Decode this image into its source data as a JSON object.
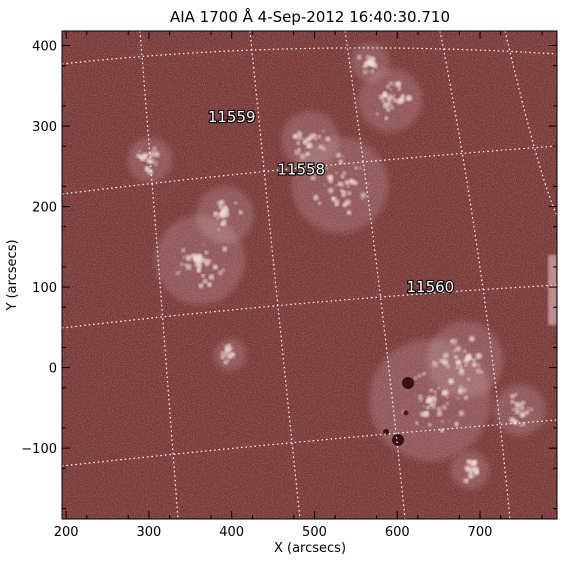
{
  "title": "AIA 1700 Å   4-Sep-2012 16:40:30.710",
  "axes": {
    "xlabel": "X (arcsecs)",
    "ylabel": "Y (arcsecs)",
    "xlim": [
      195,
      793
    ],
    "ylim": [
      -188,
      418
    ],
    "xticks": [
      "200",
      "300",
      "400",
      "500",
      "600",
      "700"
    ],
    "yticks": [
      "−100",
      "0",
      "100",
      "200",
      "300",
      "400"
    ]
  },
  "regions": [
    {
      "label": "11559",
      "x": 400,
      "y": 305
    },
    {
      "label": "11558",
      "x": 484,
      "y": 240
    },
    {
      "label": "11560",
      "x": 640,
      "y": 94
    }
  ],
  "colors": {
    "background": "#7a3a3a",
    "bright": "#f2dcdc",
    "grid": "#ffffff"
  }
}
